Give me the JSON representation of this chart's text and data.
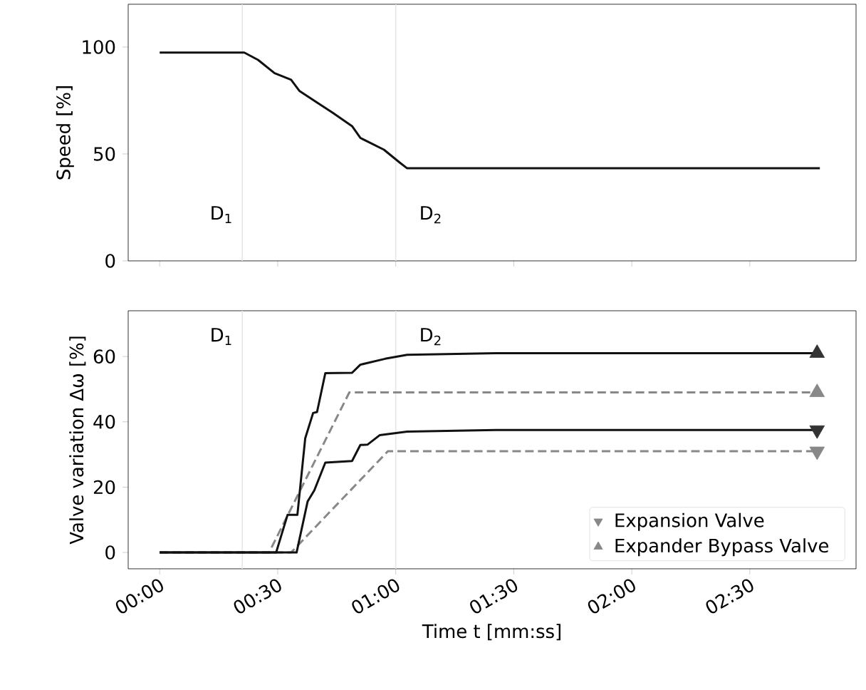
{
  "chart_data": [
    {
      "type": "line",
      "ylabel": "Speed [%]",
      "xlim": [
        -8,
        177
      ],
      "ylim": [
        0,
        120
      ],
      "yticks": [
        0,
        50,
        100
      ],
      "xticks": [
        0,
        30,
        60,
        90,
        120,
        150
      ],
      "tick_labels": "y",
      "grid": false,
      "legend": false,
      "ref_lines": [
        {
          "axis": "x",
          "value": 21,
          "label": "D$_{1}$",
          "color": "#e6e6e6"
        },
        {
          "axis": "x",
          "value": 60,
          "label": "D$_{2}$",
          "color": "#e6e6e6"
        }
      ],
      "series": [
        {
          "color": "#111111",
          "line_style": "solid",
          "marker": "none",
          "x": [
            0,
            21.5,
            25,
            29.2,
            33.4,
            35.5,
            39.7,
            44,
            48.9,
            51,
            57,
            61,
            62.9,
            167.8
          ],
          "values": [
            97.4,
            97.4,
            94,
            87.8,
            84.7,
            79.5,
            74.4,
            69.2,
            63,
            57.5,
            52,
            46,
            43.3,
            43.3
          ]
        }
      ]
    },
    {
      "type": "line",
      "xlabel": "Time t [mm:ss]",
      "ylabel": "Valve variation Δω [%]",
      "xlim": [
        -8,
        177
      ],
      "ylim": [
        -5,
        74
      ],
      "yticks": [
        0,
        20,
        40,
        60
      ],
      "xticks": [
        {
          "value": 0,
          "label": "00:00"
        },
        {
          "value": 30,
          "label": "00:30"
        },
        {
          "value": 60,
          "label": "01:00"
        },
        {
          "value": 90,
          "label": "01:30"
        },
        {
          "value": 120,
          "label": "02:00"
        },
        {
          "value": 150,
          "label": "02:30"
        }
      ],
      "grid": false,
      "legend": "bottom right",
      "ref_lines": [
        {
          "axis": "x",
          "value": 21,
          "label": "D$_{1}$",
          "color": "#e6e6e6"
        },
        {
          "axis": "x",
          "value": 60,
          "label": "D$_{2}$",
          "color": "#e6e6e6"
        }
      ],
      "series": [
        {
          "color": "#888888",
          "line_style": "dashed",
          "marker": "none",
          "x": [
            0,
            27.8,
            48.2,
            167.8
          ],
          "values": [
            0,
            0,
            49,
            49
          ]
        },
        {
          "color": "#888888",
          "line_style": "dashed",
          "marker": "none",
          "x": [
            0,
            33.4,
            58,
            167.8
          ],
          "values": [
            0,
            0,
            31,
            31
          ]
        },
        {
          "color": "#111111",
          "line_style": "solid",
          "marker": "none",
          "x": [
            0,
            29.6,
            32.5,
            35,
            37,
            39,
            40,
            42.1,
            48.9,
            51,
            57.3,
            62.9,
            85.4,
            167.8
          ],
          "values": [
            0,
            0,
            11.5,
            11.5,
            35,
            42.7,
            43,
            54.9,
            55,
            57.5,
            59.3,
            60.5,
            61,
            61
          ]
        },
        {
          "color": "#111111",
          "line_style": "solid",
          "marker": "none",
          "x": [
            0,
            34.8,
            37.6,
            39.3,
            42.1,
            48.9,
            51,
            52.8,
            55.9,
            62.9,
            85.4,
            167.8
          ],
          "values": [
            0,
            0,
            15.6,
            19,
            27.5,
            28,
            32.9,
            33,
            35.9,
            37,
            37.5,
            37.5
          ]
        },
        {
          "type": "scatter",
          "name": "Expansion Valve",
          "marker": "triangle_down",
          "color": "#888888",
          "colors": [
            "#333333",
            "#888888"
          ],
          "x": [
            167.1,
            167.1
          ],
          "values": [
            37.5,
            31
          ]
        },
        {
          "type": "scatter",
          "name": "Expander Bypass Valve",
          "marker": "triangle",
          "color": "#888888",
          "colors": [
            "#333333",
            "#888888"
          ],
          "x": [
            167.1,
            167.1
          ],
          "values": [
            61,
            49
          ]
        }
      ]
    }
  ]
}
